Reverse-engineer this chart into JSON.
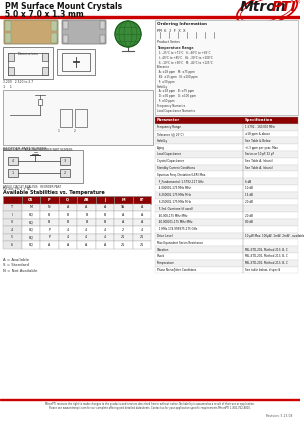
{
  "title_line1": "PM Surface Mount Crystals",
  "title_line2": "5.0 x 7.0 x 1.3 mm",
  "bg_color": "#ffffff",
  "header_line_color": "#cc0000",
  "footer_line1": "MtronPTI reserves the right to make changes to the products and services described herein without notice. No liability is assumed as a result of their use or application.",
  "footer_line2": "Please see www.mtronpti.com for our complete offering and detailed datasheets. Contact us for your application specific requirements MtronPTI 1-800-762-8800.",
  "footer_rev": "Revision: 5-13-08",
  "ordering_title": "Ordering Information",
  "ordering_lines": [
    "Product Series",
    "Temperature Range",
    "  1: -25°C to +71°C   6: -40°C to +85°C",
    "  I: -40°C to +85°C   HL: -30°C to +100°C",
    "  S: -10°C to +60°C   M: -40°C to +125°C",
    "Tolerance",
    "  A: ±18 ppm   M: ±75 ppm",
    "  B1: ±15 ppm   N: ±100 ppm",
    "  F: ±30 ppm",
    "Stability",
    "  A: ±18 ppm   B: ±75 ppm",
    "  D: ±30 ppm   G: ±100 ppm",
    "  F: ±50 ppm",
    "Frequency Numerics",
    "Load Capacitance Numerics"
  ],
  "spec_col1_header": "Parameter",
  "spec_col2_header": "Specification",
  "spec_rows": [
    [
      "Frequency Range",
      "1.5792 - 160.000 MHz"
    ],
    [
      "Tolerance (@ 25°C)",
      "±18 ppm & above"
    ],
    [
      "Stability",
      "See Table & Below"
    ],
    [
      "Aging",
      "+/-3 ppm per year, Max"
    ],
    [
      "Load Capacitance",
      "Series or 10 pF-32 pF"
    ],
    [
      "Crystal Capacitance",
      "See Table A, (shunt)"
    ],
    [
      "Standby Current Conditions",
      "See Table A, (shunt)"
    ],
    [
      "Spurious Freq. Deviation (LER) Max.",
      ""
    ],
    [
      "  F_Fundamental: 1.5792-117 GHz",
      "6 dB"
    ],
    [
      "  4.000001-175 MHz MHz",
      "10 dB"
    ],
    [
      "  6.250001-175 MHz MHz",
      "15 dB"
    ],
    [
      "  6.250001-175 MHz MHz",
      "20 dB"
    ],
    [
      "  F-3rd. Overtone (if used)",
      ""
    ],
    [
      "  40.000-175 MHz MHz",
      "20 dB"
    ],
    [
      "  40.000001-175 MHz MHz",
      "80 dB"
    ],
    [
      "  1 MHz 174.999975-175 GHz",
      ""
    ],
    [
      "Drive Level",
      "10 μW Max; 100μW, 1mW, 2mW - available"
    ],
    [
      "Max Equivalent Series Resistance",
      ""
    ],
    [
      "Vibration",
      "MIL-STD-202, Method 213, B, C"
    ],
    [
      "Shock",
      "MIL-STD-202, Method 213, B, C"
    ],
    [
      "Temperature",
      "MIL-STD-202, Method 213, B, C"
    ],
    [
      "Phase Noise/Jitter Conditions",
      "See table below, if spec'd"
    ]
  ],
  "stab_headers": [
    "",
    "CR",
    "P",
    "Q",
    "AB",
    "J",
    "M",
    "B*"
  ],
  "stab_rows": [
    [
      "T",
      "M",
      "N",
      "A",
      "A",
      "A",
      "TA",
      "A"
    ],
    [
      "I",
      "RQ",
      "B",
      "B",
      "B",
      "B",
      "A",
      "A"
    ],
    [
      "S",
      "RQ",
      "B",
      "B",
      "B",
      "B",
      "A",
      "A"
    ],
    [
      "4",
      "RQ",
      "P",
      "4",
      "4",
      "4",
      "2",
      "4"
    ],
    [
      "5",
      "RQ",
      "P",
      "4",
      "4",
      "4",
      "21",
      "21"
    ],
    [
      "6",
      "RQ",
      "A",
      "A",
      "A",
      "A",
      "21",
      "21"
    ]
  ],
  "stab_legend": [
    "A = Available",
    "S = Standard",
    "N = Not Available"
  ]
}
